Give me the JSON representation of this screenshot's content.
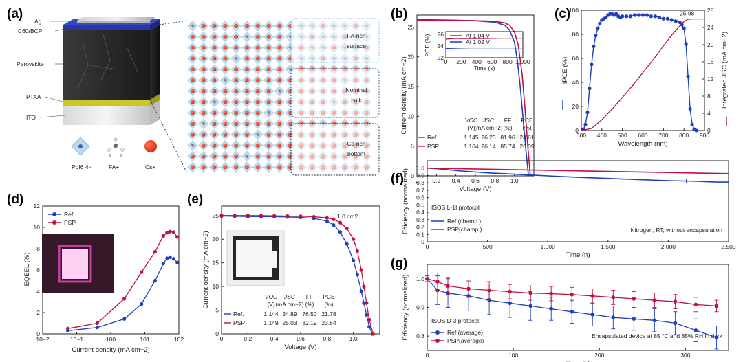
{
  "colors": {
    "ref": "#1f3fbf",
    "psp": "#c2103f",
    "integrated": "#b3134a",
    "ipce": "#1f3fbf"
  },
  "panel_a": {
    "label": "(a)",
    "layers": {
      "ag": "Ag",
      "c60_bcp": "C60/BCP",
      "perovskite": "Perovskite",
      "ptaa": "PTAA",
      "ito": "ITO"
    },
    "species": {
      "pbi6": "PbI6 4−",
      "fa": "FA+",
      "cs": "Cs+"
    },
    "regions": {
      "fa_rich_1": "FA-rich",
      "fa_rich_2": "surface",
      "nominal_1": "Nominal",
      "nominal_2": "bulk",
      "cs_rich_1": "Cs-rich",
      "cs_rich_2": "bottom"
    }
  },
  "panel_b": {
    "label": "(b)"
  },
  "panel_c": {
    "label": "(c)"
  },
  "panel_d": {
    "label": "(d)"
  },
  "panel_e": {
    "label": "(e)"
  },
  "panel_f": {
    "label": "(f)"
  },
  "panel_g": {
    "label": "(g)"
  },
  "chart_data": [
    {
      "id": "b",
      "type": "line",
      "xlabel": "Voltage (V)",
      "ylabel": "Current density (mA cm−2)",
      "xlim": [
        0,
        1.2
      ],
      "ylim": [
        0,
        27
      ],
      "xticks": [
        "0",
        "0.2",
        "0.4",
        "0.6",
        "0.8",
        "1.0"
      ],
      "xtick_values": [
        0,
        0.2,
        0.4,
        0.6,
        0.8,
        1.0
      ],
      "yticks": [
        "0",
        "5",
        "10",
        "15",
        "20",
        "25"
      ],
      "ytick_values": [
        0,
        5,
        10,
        15,
        20,
        25
      ],
      "series": [
        {
          "name": "Ref.",
          "color": "#1f3fbf",
          "x": [
            0,
            0.2,
            0.4,
            0.6,
            0.8,
            0.9,
            0.95,
            1.0,
            1.03,
            1.06,
            1.09,
            1.12,
            1.145
          ],
          "y": [
            26.23,
            26.2,
            26.15,
            26.05,
            25.8,
            25.3,
            24.5,
            22.5,
            19.5,
            15.0,
            9.5,
            4.0,
            0
          ]
        },
        {
          "name": "PSP",
          "color": "#c2103f",
          "x": [
            0,
            0.2,
            0.4,
            0.6,
            0.8,
            0.9,
            0.95,
            1.0,
            1.04,
            1.08,
            1.11,
            1.14,
            1.164
          ],
          "y": [
            26.14,
            26.12,
            26.1,
            26.05,
            25.95,
            25.7,
            25.3,
            24.2,
            22.0,
            17.0,
            11.0,
            4.5,
            0
          ]
        }
      ],
      "inset": {
        "ylabel": "PCE (%)",
        "xlabel": "Time (s)",
        "xlim": [
          0,
          1000
        ],
        "ylim": [
          22,
          26.5
        ],
        "xticks": [
          "0",
          "200",
          "400",
          "600",
          "800",
          "1,000"
        ],
        "xtick_values": [
          0,
          200,
          400,
          600,
          800,
          1000
        ],
        "yticks": [
          "22",
          "24",
          "26"
        ],
        "ytick_values": [
          22,
          24,
          26
        ],
        "series": [
          {
            "name": "At 1.04 V",
            "color": "#c2103f",
            "x": [
              0,
              100,
              300,
              500,
              700,
              900,
              1000
            ],
            "y": [
              25.2,
              25.3,
              25.3,
              25.3,
              25.35,
              25.35,
              25.35
            ]
          },
          {
            "name": "At 1.02 V",
            "color": "#1f3fbf",
            "x": [
              0,
              100,
              300,
              500,
              700,
              900,
              1000
            ],
            "y": [
              23.6,
              23.55,
              23.5,
              23.5,
              23.5,
              23.5,
              23.5
            ]
          }
        ]
      },
      "table": {
        "headers": [
          "VOC (V)",
          "JSC (mA cm−2)",
          "FF (%)",
          "PCE (%)"
        ],
        "header_top": [
          "VOC",
          "JSC",
          "FF",
          "PCE"
        ],
        "header_bottom": [
          "(V)",
          "(mA cm−2)",
          "(%)",
          "(%)"
        ],
        "rows": [
          {
            "name": "Ref.",
            "values": [
              "1.145",
              "26.23",
              "81.96",
              "24.61"
            ]
          },
          {
            "name": "PSP",
            "values": [
              "1.164",
              "26.14",
              "85.74",
              "26.09"
            ]
          }
        ]
      }
    },
    {
      "id": "c",
      "type": "line",
      "xlabel": "Wavelength (nm)",
      "ylabel_left": "IPCE (%)",
      "ylabel_right": "Integrated JSC (mA cm−2)",
      "xlim": [
        300,
        900
      ],
      "ylim_left": [
        0,
        100
      ],
      "ylim_right": [
        0,
        28
      ],
      "xticks": [
        "300",
        "400",
        "500",
        "600",
        "700",
        "800",
        "900"
      ],
      "xtick_values": [
        300,
        400,
        500,
        600,
        700,
        800,
        900
      ],
      "yticks_left": [
        "0",
        "20",
        "40",
        "60",
        "80",
        "100"
      ],
      "ytick_values_left": [
        0,
        20,
        40,
        60,
        80,
        100
      ],
      "yticks_right": [
        "0",
        "4",
        "8",
        "12",
        "16",
        "20",
        "24",
        "28"
      ],
      "ytick_values_right": [
        0,
        4,
        8,
        12,
        16,
        20,
        24,
        28
      ],
      "annotation": "25.98",
      "series": [
        {
          "name": "IPCE",
          "axis": "left",
          "color": "#1f3fbf",
          "markers": true,
          "x": [
            310,
            320,
            330,
            340,
            350,
            360,
            370,
            380,
            390,
            400,
            410,
            420,
            430,
            440,
            450,
            460,
            470,
            480,
            490,
            500,
            520,
            540,
            560,
            580,
            600,
            620,
            640,
            660,
            680,
            700,
            720,
            740,
            760,
            780,
            790,
            800,
            810,
            820,
            830,
            840,
            850,
            860
          ],
          "y": [
            1,
            5,
            15,
            35,
            55,
            70,
            79,
            85,
            89,
            92,
            93,
            94,
            96,
            97,
            97,
            96,
            97,
            95,
            94,
            95,
            95,
            95,
            96,
            96,
            96,
            96,
            95,
            95,
            94,
            93,
            93,
            92,
            91,
            90,
            88,
            85,
            72,
            45,
            18,
            5,
            1,
            0
          ]
        },
        {
          "name": "Integrated JSC",
          "axis": "right",
          "color": "#b3134a",
          "markers": false,
          "x": [
            300,
            350,
            400,
            450,
            500,
            550,
            600,
            650,
            700,
            750,
            800,
            820,
            840,
            860,
            900
          ],
          "y": [
            0,
            0.5,
            2.5,
            5.0,
            7.7,
            10.5,
            13.5,
            16.5,
            19.7,
            22.8,
            25.4,
            25.9,
            25.98,
            25.98,
            25.98
          ]
        }
      ]
    },
    {
      "id": "d",
      "type": "line",
      "xscale": "log",
      "xlabel": "Current density (mA cm−2)",
      "ylabel": "EQEEL (%)",
      "xlim": [
        0.01,
        100
      ],
      "ylim": [
        0,
        12
      ],
      "xticks": [
        "10−2",
        "10−1",
        "100",
        "101",
        "102"
      ],
      "xtick_values": [
        0.01,
        0.1,
        1,
        10,
        100
      ],
      "yticks": [
        "0",
        "2",
        "4",
        "6",
        "8",
        "10",
        "12"
      ],
      "ytick_values": [
        0,
        2,
        4,
        6,
        8,
        10,
        12
      ],
      "series": [
        {
          "name": "Ref.",
          "color": "#1f3fbf",
          "x": [
            0.055,
            0.4,
            2.5,
            8,
            20,
            35,
            45,
            55,
            70,
            90
          ],
          "y": [
            0.3,
            0.6,
            1.4,
            2.8,
            5.0,
            6.6,
            7.1,
            7.2,
            7.05,
            6.7
          ]
        },
        {
          "name": "PSP",
          "color": "#c2103f",
          "x": [
            0.055,
            0.4,
            2.5,
            8,
            20,
            35,
            45,
            55,
            70,
            90
          ],
          "y": [
            0.5,
            1.0,
            3.3,
            5.8,
            7.7,
            9.2,
            9.5,
            9.6,
            9.55,
            9.1
          ]
        }
      ]
    },
    {
      "id": "e",
      "type": "line",
      "xlabel": "Voltage (V)",
      "ylabel": "Current density (mA cm−2)",
      "xlim": [
        0,
        1.2
      ],
      "ylim": [
        0,
        27
      ],
      "xticks": [
        "0",
        "0.2",
        "0.4",
        "0.6",
        "0.8",
        "1.0"
      ],
      "xtick_values": [
        0,
        0.2,
        0.4,
        0.6,
        0.8,
        1.0
      ],
      "yticks": [
        "0",
        "5",
        "10",
        "15",
        "20",
        "25"
      ],
      "ytick_values": [
        0,
        5,
        10,
        15,
        20,
        25
      ],
      "annotation": "1.0 cm2",
      "series": [
        {
          "name": "Ref.",
          "color": "#1f3fbf",
          "x": [
            0,
            0.1,
            0.2,
            0.3,
            0.4,
            0.5,
            0.6,
            0.7,
            0.8,
            0.85,
            0.9,
            0.95,
            1.0,
            1.03,
            1.06,
            1.08,
            1.1,
            1.12,
            1.144
          ],
          "y": [
            24.89,
            24.85,
            24.8,
            24.78,
            24.75,
            24.7,
            24.6,
            24.4,
            23.8,
            23.0,
            21.5,
            19.0,
            15.5,
            12.5,
            9.0,
            6.5,
            4.0,
            1.5,
            0
          ]
        },
        {
          "name": "PSP",
          "color": "#c2103f",
          "x": [
            0,
            0.1,
            0.2,
            0.3,
            0.4,
            0.5,
            0.6,
            0.7,
            0.8,
            0.85,
            0.9,
            0.95,
            1.0,
            1.03,
            1.06,
            1.08,
            1.1,
            1.12,
            1.149
          ],
          "y": [
            25.03,
            25.0,
            25.0,
            24.98,
            24.95,
            24.9,
            24.85,
            24.75,
            24.5,
            24.2,
            23.5,
            22.3,
            20.0,
            17.5,
            13.5,
            10.0,
            6.5,
            3.0,
            0
          ]
        }
      ],
      "table": {
        "header_top": [
          "VOC",
          "JSC",
          "FF",
          "PCE"
        ],
        "header_bottom": [
          "(V)",
          "(mA cm−2)",
          "(%)",
          "(%)"
        ],
        "rows": [
          {
            "name": "Ref.",
            "values": [
              "1.144",
              "24.89",
              "76.50",
              "21.78"
            ]
          },
          {
            "name": "PSP",
            "values": [
              "1.149",
              "25.03",
              "82.19",
              "23.64"
            ]
          }
        ]
      }
    },
    {
      "id": "f",
      "type": "line",
      "xlabel": "Time (h)",
      "ylabel": "Efficiency (normalized)",
      "xlim": [
        0,
        2500
      ],
      "ylim": [
        0,
        1.1
      ],
      "xticks": [
        "0",
        "500",
        "1,000",
        "1,500",
        "2,000",
        "2,500"
      ],
      "xtick_values": [
        0,
        500,
        1000,
        1500,
        2000,
        2500
      ],
      "yticks": [
        "0",
        "0.1",
        "0.2",
        "0.3",
        "0.4",
        "0.5",
        "0.6",
        "0.7",
        "0.8",
        "0.9",
        "1.0"
      ],
      "ytick_values": [
        0,
        0.1,
        0.2,
        0.3,
        0.4,
        0.5,
        0.6,
        0.7,
        0.8,
        0.9,
        1.0
      ],
      "protocol": "ISOS L-1I protocol",
      "condition": "Nitrogen, RT, without encapsulation",
      "series": [
        {
          "name": "Ref.(champ.)",
          "color": "#1f3fbf",
          "x": [
            0,
            100,
            250,
            500,
            750,
            1000,
            1250,
            1500,
            1750,
            2000,
            2250,
            2400,
            2500
          ],
          "y": [
            1.0,
            0.99,
            0.965,
            0.935,
            0.915,
            0.895,
            0.875,
            0.86,
            0.845,
            0.83,
            0.82,
            0.81,
            0.81
          ]
        },
        {
          "name": "PSP(champ.)",
          "color": "#c2103f",
          "x": [
            0,
            500,
            1000,
            1500,
            2000,
            2500
          ],
          "y": [
            1.0,
            0.985,
            0.97,
            0.955,
            0.94,
            0.925
          ]
        }
      ]
    },
    {
      "id": "g",
      "type": "line",
      "error_bars": true,
      "xlabel": "Time (h)",
      "ylabel": "Efficiency (normalized)",
      "xlim": [
        0,
        350
      ],
      "ylim": [
        0.75,
        1.05
      ],
      "xticks": [
        "0",
        "100",
        "200",
        "300"
      ],
      "xtick_values": [
        0,
        100,
        200,
        300
      ],
      "yticks": [
        "0.8",
        "0.9",
        "1.0"
      ],
      "ytick_values": [
        0.8,
        0.9,
        1.0
      ],
      "protocol": "ISOS D-3 protocol",
      "condition": "Encapsulated device at 85 °C and 85% RH in dark",
      "series": [
        {
          "name": "Ref.(average)",
          "color": "#1f3fbf",
          "x": [
            0,
            12,
            24,
            48,
            72,
            96,
            120,
            144,
            168,
            192,
            216,
            240,
            264,
            288,
            312,
            336
          ],
          "y": [
            1.0,
            0.96,
            0.95,
            0.94,
            0.925,
            0.915,
            0.905,
            0.895,
            0.885,
            0.875,
            0.865,
            0.86,
            0.855,
            0.845,
            0.82,
            0.795
          ],
          "err": [
            0.01,
            0.05,
            0.05,
            0.05,
            0.05,
            0.05,
            0.05,
            0.04,
            0.04,
            0.04,
            0.04,
            0.04,
            0.04,
            0.04,
            0.04,
            0.04
          ]
        },
        {
          "name": "PSP(average)",
          "color": "#c2103f",
          "x": [
            0,
            12,
            24,
            48,
            72,
            96,
            120,
            144,
            168,
            192,
            216,
            240,
            264,
            288,
            312,
            336
          ],
          "y": [
            1.0,
            0.99,
            0.975,
            0.965,
            0.96,
            0.955,
            0.95,
            0.948,
            0.945,
            0.94,
            0.935,
            0.93,
            0.925,
            0.92,
            0.91,
            0.905
          ],
          "err": [
            0.01,
            0.03,
            0.03,
            0.03,
            0.03,
            0.025,
            0.025,
            0.025,
            0.025,
            0.025,
            0.025,
            0.025,
            0.025,
            0.025,
            0.025,
            0.02
          ]
        }
      ]
    }
  ]
}
